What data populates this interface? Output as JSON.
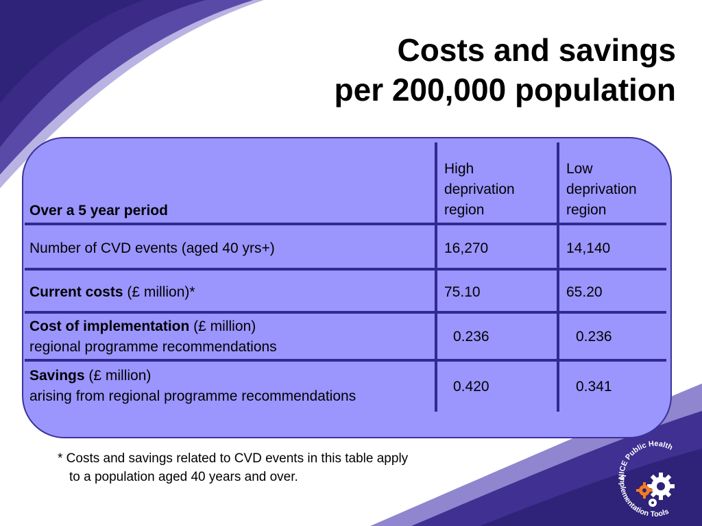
{
  "title": {
    "line1": "Costs and savings",
    "line2": "per 200,000 population"
  },
  "table": {
    "header": {
      "label": "Over a 5 year period",
      "col_high": [
        "High",
        "deprivation",
        "region"
      ],
      "col_low": [
        "Low",
        "deprivation",
        "region"
      ]
    },
    "rows": [
      {
        "label": "Number of CVD events (aged 40 yrs+)",
        "high": "16,270",
        "low": "14,140"
      },
      {
        "label_bold": "Current costs",
        "label_rest": " (£ million)*",
        "high": "75.10",
        "low": "65.20"
      },
      {
        "label_bold": "Cost of implementation",
        "label_rest": " (£ million)",
        "label_line2": "regional programme recommendations",
        "high": "0.236",
        "low": "0.236"
      },
      {
        "label_bold": "Savings",
        "label_rest": " (£ million)",
        "label_line2": "arising from regional programme recommendations",
        "high": "0.420",
        "low": "0.341"
      }
    ]
  },
  "footnote": {
    "line1": "* Costs and savings related to CVD events in this table apply",
    "line2": "to a population aged 40 years and over."
  },
  "logo": {
    "text_top": "NICE Public Health",
    "text_bottom": "Implementation Tools",
    "icon": "gears-icon"
  },
  "colors": {
    "panel_fill": "#9b95fe",
    "grid_lines": "#2f2a8f",
    "band_dark": "#2e2378",
    "band_light": "#6b5fb8",
    "gear_orange": "#f47c20"
  }
}
